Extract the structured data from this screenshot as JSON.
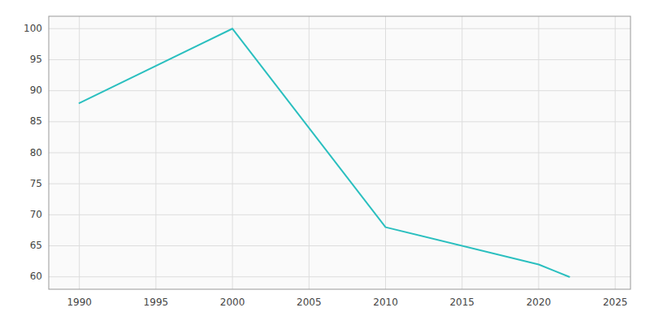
{
  "chart_data": {
    "type": "line",
    "x": [
      1990,
      2000,
      2010,
      2020,
      2021,
      2022
    ],
    "values": [
      88,
      100,
      68,
      62,
      61,
      60
    ],
    "color": "#2ABFBF",
    "xlim": [
      1988,
      2026
    ],
    "ylim": [
      58,
      102
    ],
    "xticks": [
      1990,
      1995,
      2000,
      2005,
      2010,
      2015,
      2020,
      2025
    ],
    "yticks": [
      60,
      65,
      70,
      75,
      80,
      85,
      90,
      95,
      100
    ],
    "grid": true
  }
}
